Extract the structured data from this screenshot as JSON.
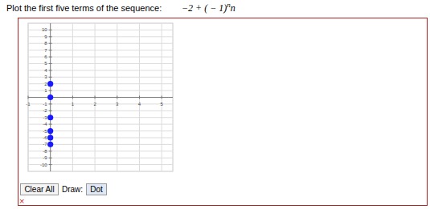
{
  "prompt": "Plot the first five terms of the sequence:",
  "formula": {
    "base": "−2 + ( − 1)",
    "exponent": "n",
    "tail": "n"
  },
  "chart_data": {
    "type": "scatter",
    "x": [
      0,
      0,
      0,
      0,
      0,
      0
    ],
    "values": [
      2,
      0,
      -3,
      -5,
      -6,
      -7
    ],
    "color": "#1a1aff",
    "marker": "circle",
    "xlim": [
      -1,
      5.5
    ],
    "ylim": [
      -11,
      11
    ],
    "xticks": [
      -1,
      1,
      2,
      3,
      4,
      5
    ],
    "yticks": [
      -10,
      -9,
      -8,
      -7,
      -6,
      -5,
      -4,
      -3,
      -2,
      -1,
      1,
      2,
      3,
      4,
      5,
      6,
      7,
      8,
      9,
      10
    ],
    "grid": true
  },
  "controls": {
    "clear": "Clear All",
    "draw_label": "Draw:",
    "tool": "Dot"
  },
  "status": "×"
}
